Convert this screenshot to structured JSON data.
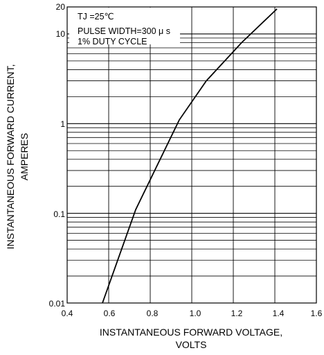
{
  "chart_data": {
    "type": "line",
    "y_scale": "log",
    "x_ticks": [
      "0.4",
      "0.6",
      "0.8",
      "1.0",
      "1.2",
      "1.4",
      "1.6"
    ],
    "y_ticks": [
      "0.01",
      "0.1",
      "1",
      "10",
      "20"
    ],
    "xlim": [
      0.4,
      1.6
    ],
    "ylim": [
      0.01,
      20
    ],
    "xlabel": [
      "INSTANTANEOUS FORWARD VOLTAGE,",
      "VOLTS"
    ],
    "ylabel": [
      "INSTANTANEOUS FORWARD CURRENT,",
      "AMPERES"
    ],
    "annotations": [
      "TJ =25℃",
      "PULSE WIDTH=300 μ s",
      "1% DUTY CYCLE"
    ],
    "grid": true,
    "series": [
      {
        "x": [
          0.57,
          0.73,
          0.94,
          1.07,
          1.24,
          1.41
        ],
        "y": [
          0.01,
          0.11,
          1.1,
          3.0,
          8.0,
          19.0
        ]
      }
    ],
    "line_color": "#000000"
  }
}
